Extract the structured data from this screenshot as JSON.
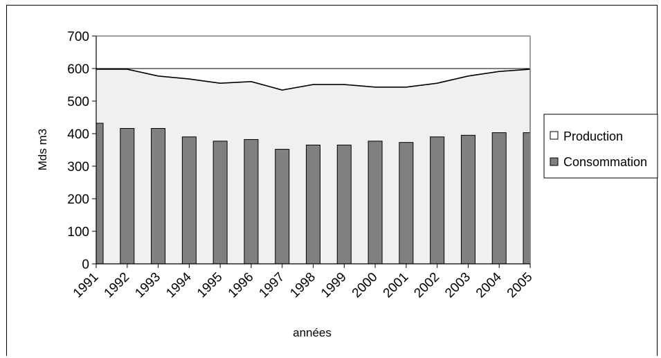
{
  "chart_data": {
    "type": "area+bar",
    "xlabel": "années",
    "ylabel": "Mds m3",
    "ylim": [
      0,
      700
    ],
    "yticks": [
      0,
      100,
      200,
      300,
      400,
      500,
      600,
      700
    ],
    "categories": [
      "1991",
      "1992",
      "1993",
      "1994",
      "1995",
      "1996",
      "1997",
      "1998",
      "1999",
      "2000",
      "2001",
      "2002",
      "2003",
      "2004",
      "2005"
    ],
    "series": [
      {
        "name": "Production",
        "type": "area",
        "color": "#f0f0f0",
        "values": [
          598,
          598,
          577,
          568,
          555,
          560,
          534,
          551,
          551,
          543,
          543,
          555,
          577,
          591,
          598
        ]
      },
      {
        "name": "Consommation",
        "type": "bar",
        "color": "#808080",
        "values": [
          432,
          416,
          416,
          390,
          377,
          382,
          352,
          365,
          365,
          377,
          373,
          390,
          395,
          403,
          403
        ]
      }
    ],
    "grid": "horizontal line at 600",
    "legend": "right"
  }
}
